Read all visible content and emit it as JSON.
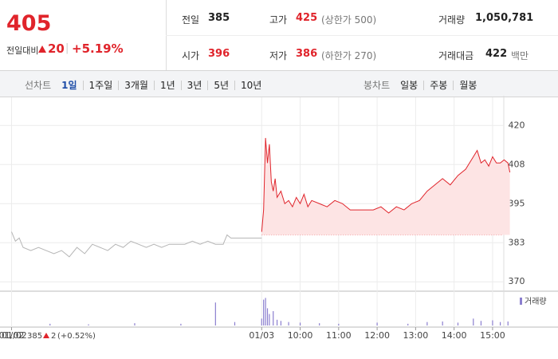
{
  "quote": {
    "price": 405,
    "change_label": "전일대비",
    "change": 20,
    "change_rate": "+5.19%"
  },
  "stats": [
    {
      "label": "전일",
      "value": 385,
      "color": "#222"
    },
    {
      "label": "고가",
      "value": 425,
      "note": "(상한가 500)",
      "color": "#e0242b"
    },
    {
      "label": "거래량",
      "value": "1,050,781",
      "color": "#222"
    },
    {
      "label": "시가",
      "value": 396,
      "color": "#e0242b"
    },
    {
      "label": "저가",
      "value": 386,
      "note": "(하한가 270)",
      "color": "#e0242b"
    },
    {
      "label": "거래대금",
      "value": 422,
      "note": "백만",
      "color": "#222"
    }
  ],
  "line_tabs": {
    "label": "선차트",
    "items": [
      "1일",
      "1주일",
      "3개월",
      "1년",
      "3년",
      "5년",
      "10년"
    ],
    "selected": 0
  },
  "candle_tabs": {
    "label": "봉차트",
    "items": [
      "일봉",
      "주봉",
      "월봉"
    ]
  },
  "prev_day": {
    "date": "01/02",
    "price": 385,
    "change": 2,
    "rate": "(+0.52%)"
  },
  "chart_data": {
    "type": "line",
    "xlim": [
      -0.3,
      12.75
    ],
    "xticks": [
      {
        "value": 0,
        "label": "01/02"
      },
      {
        "value": 6.5,
        "label": "01/03"
      },
      {
        "value": 7.5,
        "label": "10:00"
      },
      {
        "value": 8.5,
        "label": "11:00"
      },
      {
        "value": 9.5,
        "label": "12:00"
      },
      {
        "value": 10.5,
        "label": "13:00"
      },
      {
        "value": 11.5,
        "label": "14:00"
      },
      {
        "value": 12.5,
        "label": "15:00"
      }
    ],
    "ylim": [
      367,
      429
    ],
    "yticks": [
      370,
      {
        "value": 382.5,
        "label": "383"
      },
      395,
      {
        "value": 407.5,
        "label": "408"
      },
      420
    ],
    "base": 385,
    "grid": true,
    "series": [
      {
        "color": "#b5b5b5",
        "x": [
          0,
          0.1,
          0.2,
          0.3,
          0.5,
          0.7,
          0.9,
          1.1,
          1.3,
          1.5,
          1.7,
          1.9,
          2.1,
          2.3,
          2.5,
          2.7,
          2.9,
          3.1,
          3.3,
          3.5,
          3.7,
          3.9,
          4.1,
          4.3,
          4.5,
          4.7,
          4.9,
          5.1,
          5.3,
          5.5,
          5.6,
          5.7,
          5.9,
          6.1,
          6.3,
          6.5
        ],
        "values": [
          386,
          383,
          384,
          381,
          380,
          381,
          380,
          379,
          380,
          378,
          381,
          379,
          382,
          381,
          380,
          382,
          381,
          383,
          382,
          381,
          382,
          381,
          382,
          382,
          382,
          383,
          382,
          383,
          382,
          382,
          385,
          384,
          384,
          384,
          384,
          384
        ]
      },
      {
        "color": "#e0242b",
        "fill": "#fde4e4",
        "x": [
          6.5,
          6.55,
          6.6,
          6.65,
          6.7,
          6.75,
          6.8,
          6.85,
          6.9,
          7.0,
          7.1,
          7.2,
          7.3,
          7.4,
          7.5,
          7.6,
          7.7,
          7.8,
          8.0,
          8.2,
          8.4,
          8.6,
          8.8,
          9.0,
          9.2,
          9.4,
          9.6,
          9.8,
          10.0,
          10.2,
          10.4,
          10.6,
          10.8,
          11.0,
          11.2,
          11.4,
          11.6,
          11.8,
          12.0,
          12.1,
          12.2,
          12.3,
          12.4,
          12.5,
          12.6,
          12.7,
          12.8,
          12.9,
          12.95
        ],
        "values": [
          386,
          393,
          416,
          408,
          414,
          402,
          399,
          403,
          397,
          399,
          395,
          396,
          394,
          397,
          395,
          398,
          394,
          396,
          395,
          394,
          396,
          395,
          393,
          393,
          393,
          393,
          394,
          392,
          394,
          393,
          395,
          396,
          399,
          401,
          403,
          401,
          404,
          406,
          410,
          412,
          408,
          409,
          407,
          410,
          408,
          408,
          409,
          408,
          405
        ]
      }
    ],
    "volume": {
      "name": "거래량",
      "color": "#8b7fcf",
      "lim": [
        0,
        50000
      ],
      "x": [
        1.0,
        2.0,
        3.2,
        4.4,
        5.3,
        5.8,
        6.5,
        6.55,
        6.6,
        6.65,
        6.7,
        6.8,
        6.9,
        7.0,
        7.2,
        7.5,
        8.0,
        8.5,
        9.5,
        10.3,
        10.8,
        11.2,
        11.6,
        12.0,
        12.2,
        12.5,
        12.7,
        12.9
      ],
      "values": [
        3000,
        2000,
        4000,
        3000,
        40000,
        6000,
        12000,
        45000,
        48000,
        30000,
        20000,
        25000,
        10000,
        8000,
        6000,
        5000,
        4000,
        3000,
        5000,
        3000,
        6000,
        7000,
        5000,
        12000,
        8000,
        9000,
        6000,
        7000
      ]
    }
  }
}
